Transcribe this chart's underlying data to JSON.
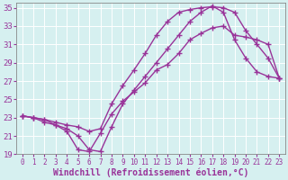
{
  "title": "",
  "xlabel": "Windchill (Refroidissement éolien,°C)",
  "xlim": [
    -0.5,
    23.5
  ],
  "ylim": [
    19,
    35.5
  ],
  "xticks": [
    0,
    1,
    2,
    3,
    4,
    5,
    6,
    7,
    8,
    9,
    10,
    11,
    12,
    13,
    14,
    15,
    16,
    17,
    18,
    19,
    20,
    21,
    22,
    23
  ],
  "yticks": [
    19,
    21,
    23,
    25,
    27,
    29,
    31,
    33,
    35
  ],
  "bg_color": "#d6f0f0",
  "line_color": "#993399",
  "line1_x": [
    0,
    1,
    2,
    3,
    4,
    5,
    6,
    7,
    8,
    9,
    10,
    11,
    12,
    13,
    14,
    15,
    16,
    17,
    18,
    19,
    20,
    21,
    22,
    23
  ],
  "line1_y": [
    23.2,
    23.0,
    22.8,
    22.2,
    21.5,
    19.5,
    19.3,
    21.3,
    23.4,
    24.8,
    25.8,
    26.8,
    28.2,
    28.8,
    30.0,
    31.5,
    32.2,
    32.8,
    33.0,
    32.0,
    31.8,
    31.5,
    31.0,
    27.3
  ],
  "line2_x": [
    0,
    1,
    2,
    3,
    4,
    5,
    6,
    7,
    8,
    9,
    10,
    11,
    12,
    13,
    14,
    15,
    16,
    17,
    18,
    19,
    20,
    21,
    22,
    23
  ],
  "line2_y": [
    23.2,
    23.0,
    22.8,
    22.5,
    22.2,
    22.0,
    21.5,
    21.8,
    24.5,
    26.5,
    28.2,
    30.0,
    32.0,
    33.5,
    34.5,
    34.8,
    35.0,
    35.1,
    35.0,
    34.5,
    32.5,
    31.0,
    29.5,
    27.3
  ],
  "line3_x": [
    0,
    1,
    2,
    3,
    4,
    5,
    6,
    7,
    8,
    9,
    10,
    11,
    12,
    13,
    14,
    15,
    16,
    17,
    18,
    19,
    20,
    21,
    22,
    23
  ],
  "line3_y": [
    23.2,
    23.0,
    22.5,
    22.2,
    21.8,
    21.0,
    19.5,
    19.3,
    22.0,
    24.5,
    26.0,
    27.5,
    29.0,
    30.5,
    32.0,
    33.5,
    34.5,
    35.2,
    34.5,
    31.5,
    29.5,
    28.0,
    27.5,
    27.3
  ],
  "marker": "+",
  "markersize": 4,
  "linewidth": 1.0,
  "tick_labelsize": 6,
  "xlabel_fontsize": 7
}
